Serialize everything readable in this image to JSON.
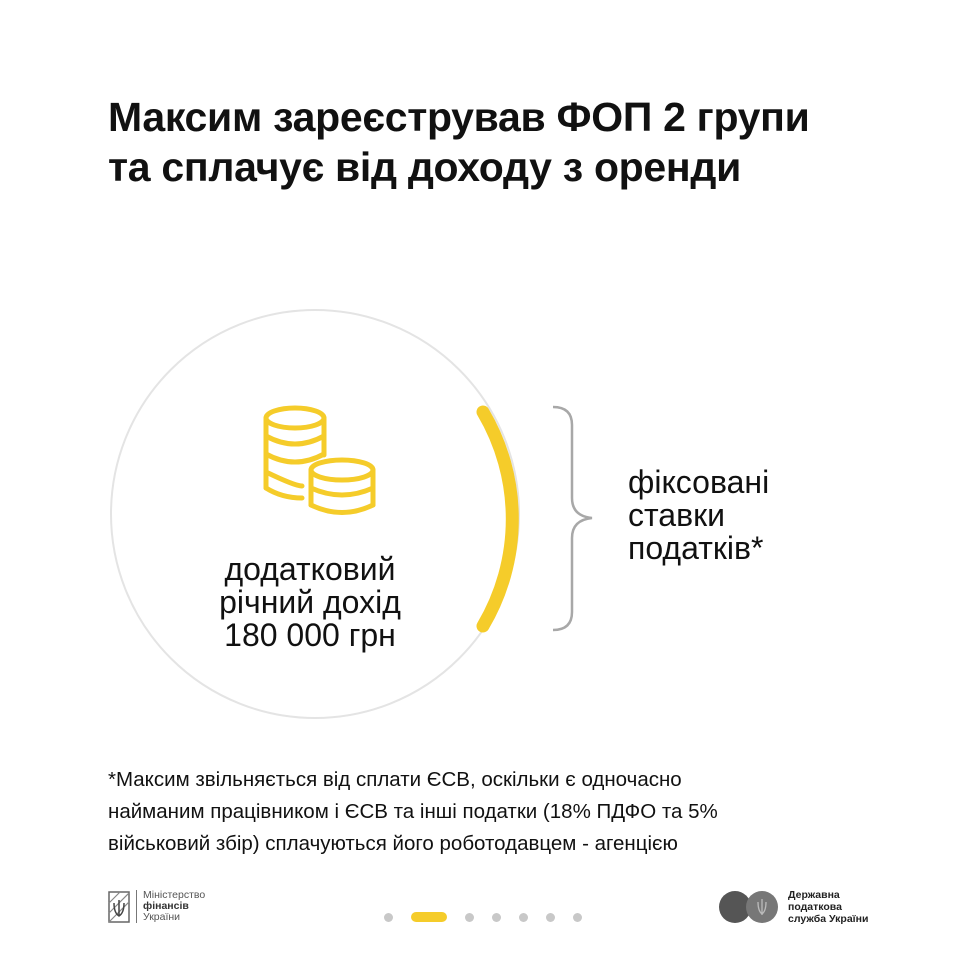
{
  "title": {
    "line1": "Максим зареєстрував ФОП 2 групи",
    "line2": "та сплачує від доходу з оренди"
  },
  "circle": {
    "line1": "додатковий",
    "line2": "річний дохід",
    "line3": "180 000 грн",
    "icon": "coins-icon"
  },
  "result": {
    "line1": "фіксовані",
    "line2": "ставки",
    "line3": "податків*"
  },
  "footnote": {
    "line1": "*Максим звільняється від сплати ЄСВ, оскільки є одночасно",
    "line2": "найманим працівником і ЄСВ та інші податки (18% ПДФО та 5%",
    "line3": "військовий збір) сплачуються його роботодавцем - агенцією"
  },
  "footer": {
    "ministry": {
      "line1": "Міністерство",
      "line2": "фінансів",
      "line3": "України"
    },
    "tax_service": {
      "line1": "Державна",
      "line2": "податкова",
      "line3": "служба України"
    },
    "pagination": {
      "total": 7,
      "active": 2
    }
  },
  "colors": {
    "accent": "#f5cc2a",
    "circle_border": "#e4e4e4",
    "brace": "#a8a8a8",
    "dot": "#c8c8c8"
  }
}
